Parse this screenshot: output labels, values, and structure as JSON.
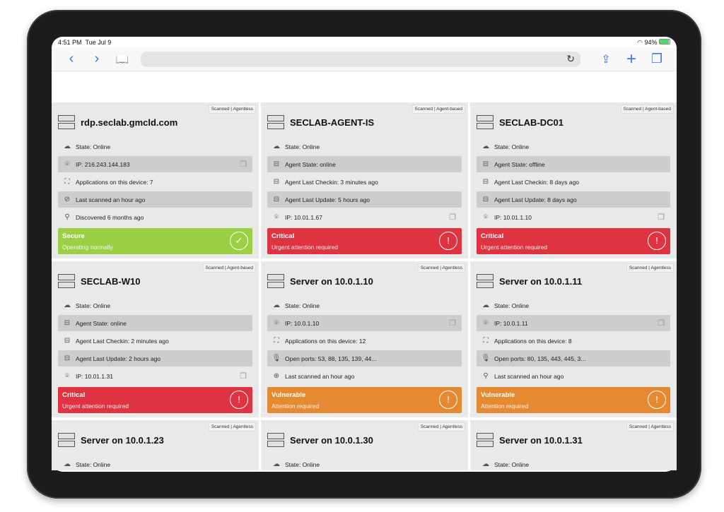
{
  "status_bar": {
    "time": "4:51 PM",
    "date": "Tue Jul 9",
    "battery": "94%"
  },
  "toolbar": {
    "back": "‹",
    "forward": "›",
    "bookmarks": "📖",
    "reload": "↻",
    "share": "⇪",
    "new_tab": "+",
    "tabs": "❐"
  },
  "colors": {
    "secure": "#9bd045",
    "critical": "#de3341",
    "vulnerable": "#e58a32"
  },
  "cards": [
    {
      "tag": "Scanned | Agentless",
      "title": "rdp.seclab.gmcld.com",
      "rows": [
        {
          "icon": "cloud-upload-icon",
          "text": "State: Online"
        },
        {
          "icon": "location-pin-icon",
          "text": "IP: 216.243.144.183",
          "copy": true
        },
        {
          "icon": "apps-frame-icon",
          "text": "Applications on this device: 7"
        },
        {
          "icon": "scan-check-icon",
          "text": "Last scanned an hour ago"
        },
        {
          "icon": "search-icon",
          "text": "Discovered 6 months ago"
        }
      ],
      "status": {
        "level": "secure",
        "label": "Secure",
        "sub": "Operating normally"
      }
    },
    {
      "tag": "Scanned | Agent-based",
      "title": "SECLAB-AGENT-IS",
      "rows": [
        {
          "icon": "cloud-upload-icon",
          "text": "State: Online"
        },
        {
          "icon": "agent-icon",
          "text": "Agent State: online"
        },
        {
          "icon": "agent-icon",
          "text": "Agent Last Checkin: 3 minutes ago"
        },
        {
          "icon": "agent-icon",
          "text": "Agent Last Update: 5 hours ago"
        },
        {
          "icon": "location-pin-icon",
          "text": "IP: 10.01.1.67",
          "copy": true
        }
      ],
      "status": {
        "level": "critical",
        "label": "Critical",
        "sub": "Urgent attention required"
      }
    },
    {
      "tag": "Scanned | Agent-based",
      "title": "SECLAB-DC01",
      "rows": [
        {
          "icon": "cloud-upload-icon",
          "text": "State: Online"
        },
        {
          "icon": "agent-icon",
          "text": "Agent State: offline"
        },
        {
          "icon": "agent-icon",
          "text": "Agent Last Checkin: 8 days ago"
        },
        {
          "icon": "agent-icon",
          "text": "Agent Last Update: 8 days ago"
        },
        {
          "icon": "location-pin-icon",
          "text": "IP: 10.01.1.10",
          "copy": true
        }
      ],
      "status": {
        "level": "critical",
        "label": "Critical",
        "sub": "Urgent attention required"
      }
    },
    {
      "tag": "Scanned | Agent-based",
      "title": "SECLAB-W10",
      "rows": [
        {
          "icon": "cloud-upload-icon",
          "text": "State: Online"
        },
        {
          "icon": "agent-icon",
          "text": "Agent State: online"
        },
        {
          "icon": "agent-icon",
          "text": "Agent Last Checkin: 2 minutes ago"
        },
        {
          "icon": "agent-icon",
          "text": "Agent Last Update: 2 hours ago"
        },
        {
          "icon": "location-pin-icon",
          "text": "IP: 10.01.1.31",
          "copy": true
        }
      ],
      "status": {
        "level": "critical",
        "label": "Critical",
        "sub": "Urgent attention required"
      }
    },
    {
      "tag": "Scanned | Agentless",
      "title": "Server on 10.0.1.10",
      "rows": [
        {
          "icon": "cloud-upload-icon",
          "text": "State: Online"
        },
        {
          "icon": "location-pin-icon",
          "text": "IP: 10.0.1.10",
          "copy": true
        },
        {
          "icon": "apps-frame-icon",
          "text": "Applications on this device: 12"
        },
        {
          "icon": "microphone-icon",
          "text": "Open ports: 53, 88, 135, 139, 44..."
        },
        {
          "icon": "zoom-in-icon",
          "text": "Last scanned an hour ago"
        }
      ],
      "status": {
        "level": "vulnerable",
        "label": "Vulnerable",
        "sub": "Attention required"
      }
    },
    {
      "tag": "Scanned | Agentless",
      "title": "Server on 10.0.1.11",
      "rows": [
        {
          "icon": "cloud-upload-icon",
          "text": "State: Online"
        },
        {
          "icon": "location-pin-icon",
          "text": "IP: 10.0.1.11",
          "copy": true
        },
        {
          "icon": "apps-frame-icon",
          "text": "Applications on this device: 8"
        },
        {
          "icon": "microphone-icon",
          "text": "Open ports: 80, 135, 443, 445, 3..."
        },
        {
          "icon": "search-icon",
          "text": "Last scanned an hour ago"
        }
      ],
      "status": {
        "level": "vulnerable",
        "label": "Vulnerable",
        "sub": "Attention required"
      }
    },
    {
      "tag": "Scanned | Agentless",
      "title": "Server on 10.0.1.23",
      "rows": [
        {
          "icon": "cloud-upload-icon",
          "text": "State: Online"
        }
      ]
    },
    {
      "tag": "Scanned | Agentless",
      "title": "Server on 10.0.1.30",
      "rows": [
        {
          "icon": "cloud-upload-icon",
          "text": "State: Online"
        }
      ]
    },
    {
      "tag": "Scanned | Agentless",
      "title": "Server on 10.0.1.31",
      "rows": [
        {
          "icon": "cloud-upload-icon",
          "text": "State: Online"
        }
      ]
    }
  ]
}
